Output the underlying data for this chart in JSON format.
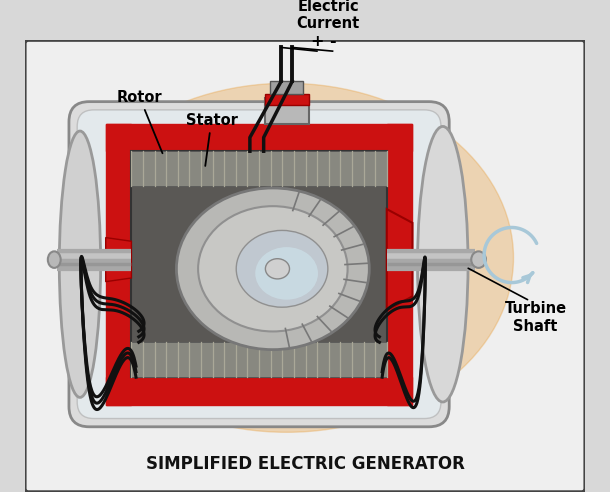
{
  "title": "SIMPLIFIED ELECTRIC GENERATOR",
  "labels": {
    "rotor": "Rotor",
    "stator": "Stator",
    "electric_current": "Electric\nCurrent",
    "turbine_shaft": "Turbine\nShaft",
    "plus": "+",
    "minus": "-"
  },
  "bg_outer": "#d8d8d8",
  "bg_inner": "#f5f0e8",
  "border_color": "#555555",
  "red_color": "#cc1111",
  "dark_red": "#990000",
  "gray_dark": "#4a4a4a",
  "gray_mid": "#7a7a7a",
  "gray_light": "#c8c8c8",
  "gray_silver": "#b8b8b8",
  "white_ish": "#e8e8e8",
  "light_blue": "#a8c8d8",
  "pale_blue": "#d0e8f0",
  "orange_warm": "#e8a040",
  "wire_black": "#111111",
  "title_fontsize": 12,
  "label_fontsize": 10.5
}
